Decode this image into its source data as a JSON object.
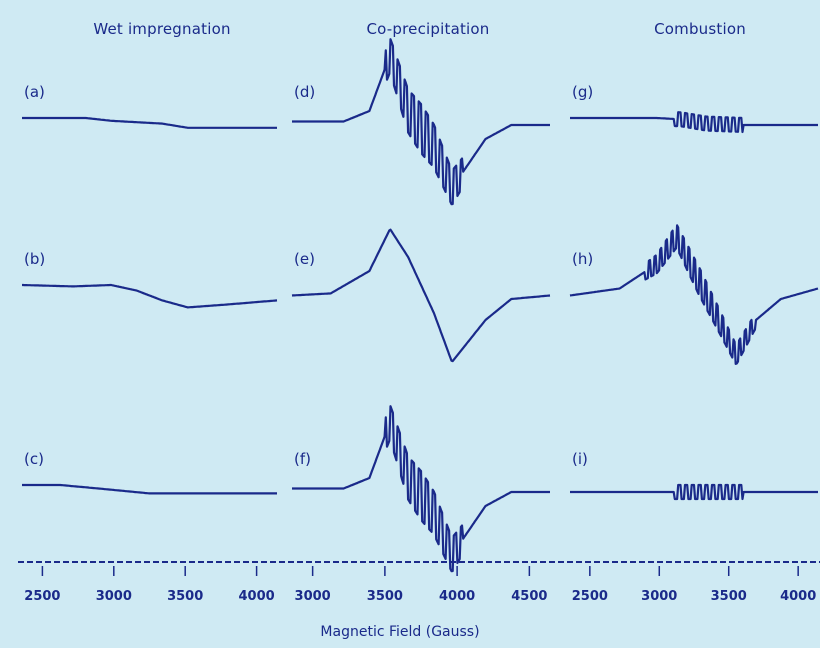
{
  "figure": {
    "column_titles": [
      "Wet impregnation",
      "Co-precipitation",
      "Combustion"
    ],
    "xlabel": "Magnetic Field (Gauss)",
    "colors": {
      "trace": "#1a2a8a",
      "background": "#cfeaf3"
    }
  },
  "chart_data": [
    {
      "type": "line",
      "label": "(a)",
      "column": 0,
      "row": 0,
      "x_ticks": [
        "2500",
        "3000",
        "3500",
        "4000"
      ],
      "series": [
        {
          "shape": "flat-steps",
          "points": [
            [
              0,
              0.1
            ],
            [
              0.25,
              0.1
            ],
            [
              0.35,
              0.06
            ],
            [
              0.45,
              0.04
            ],
            [
              0.55,
              0.02
            ],
            [
              0.65,
              -0.04
            ],
            [
              0.8,
              -0.04
            ],
            [
              1.0,
              -0.04
            ]
          ]
        }
      ]
    },
    {
      "type": "line",
      "label": "(b)",
      "column": 0,
      "row": 1,
      "x_ticks": [
        "2500",
        "3000",
        "3500",
        "4000"
      ],
      "series": [
        {
          "shape": "sigmoid-drop",
          "points": [
            [
              0,
              0.1
            ],
            [
              0.2,
              0.08
            ],
            [
              0.35,
              0.1
            ],
            [
              0.45,
              0.02
            ],
            [
              0.55,
              -0.12
            ],
            [
              0.65,
              -0.22
            ],
            [
              0.8,
              -0.18
            ],
            [
              1.0,
              -0.12
            ]
          ]
        }
      ]
    },
    {
      "type": "line",
      "label": "(c)",
      "column": 0,
      "row": 2,
      "x_ticks": [
        "2500",
        "3000",
        "3500",
        "4000"
      ],
      "series": [
        {
          "shape": "flat-steps",
          "points": [
            [
              0,
              0.1
            ],
            [
              0.15,
              0.1
            ],
            [
              0.3,
              0.05
            ],
            [
              0.5,
              -0.02
            ],
            [
              0.7,
              -0.02
            ],
            [
              1.0,
              -0.02
            ]
          ]
        }
      ]
    },
    {
      "type": "line",
      "label": "(d)",
      "column": 1,
      "row": 0,
      "x_ticks": [
        "3000",
        "3500",
        "4000",
        "4500"
      ],
      "series": [
        {
          "shape": "hyperfine-sextet",
          "points": [
            [
              0,
              0.05
            ],
            [
              0.2,
              0.05
            ],
            [
              0.3,
              0.2
            ],
            [
              0.38,
              1.0
            ],
            [
              0.45,
              0.2
            ],
            [
              0.55,
              -0.3
            ],
            [
              0.62,
              -0.9
            ],
            [
              0.75,
              -0.2
            ],
            [
              0.85,
              0
            ],
            [
              1.0,
              0
            ]
          ]
        }
      ]
    },
    {
      "type": "line",
      "label": "(e)",
      "column": 1,
      "row": 1,
      "x_ticks": [
        "3000",
        "3500",
        "4000",
        "4500"
      ],
      "series": [
        {
          "shape": "broad-derivative",
          "points": [
            [
              0,
              -0.05
            ],
            [
              0.15,
              -0.02
            ],
            [
              0.3,
              0.3
            ],
            [
              0.38,
              0.9
            ],
            [
              0.45,
              0.5
            ],
            [
              0.55,
              -0.3
            ],
            [
              0.62,
              -1.0
            ],
            [
              0.75,
              -0.4
            ],
            [
              0.85,
              -0.1
            ],
            [
              1.0,
              -0.05
            ]
          ]
        }
      ]
    },
    {
      "type": "line",
      "label": "(f)",
      "column": 1,
      "row": 2,
      "x_ticks": [
        "3000",
        "3500",
        "4000",
        "4500"
      ],
      "series": [
        {
          "shape": "hyperfine-sextet",
          "points": [
            [
              0,
              0.05
            ],
            [
              0.2,
              0.05
            ],
            [
              0.3,
              0.2
            ],
            [
              0.38,
              1.0
            ],
            [
              0.45,
              0.2
            ],
            [
              0.55,
              -0.3
            ],
            [
              0.62,
              -0.9
            ],
            [
              0.75,
              -0.2
            ],
            [
              0.85,
              0
            ],
            [
              1.0,
              0
            ]
          ]
        }
      ]
    },
    {
      "type": "line",
      "label": "(g)",
      "column": 2,
      "row": 0,
      "x_ticks": [
        "2500",
        "3000",
        "3500",
        "4000"
      ],
      "series": [
        {
          "shape": "weak-sextet",
          "points": [
            [
              0,
              0.1
            ],
            [
              0.35,
              0.1
            ],
            [
              0.45,
              0.08
            ],
            [
              0.55,
              0.02
            ],
            [
              0.7,
              0
            ],
            [
              1.0,
              0
            ]
          ]
        }
      ]
    },
    {
      "type": "line",
      "label": "(h)",
      "column": 2,
      "row": 1,
      "x_ticks": [
        "2500",
        "3000",
        "3500",
        "4000"
      ],
      "series": [
        {
          "shape": "noisy-derivative",
          "points": [
            [
              0,
              -0.05
            ],
            [
              0.2,
              0.05
            ],
            [
              0.35,
              0.4
            ],
            [
              0.43,
              0.8
            ],
            [
              0.5,
              0.3
            ],
            [
              0.6,
              -0.4
            ],
            [
              0.67,
              -0.9
            ],
            [
              0.75,
              -0.4
            ],
            [
              0.85,
              -0.1
            ],
            [
              1.0,
              0.05
            ]
          ]
        }
      ]
    },
    {
      "type": "line",
      "label": "(i)",
      "column": 2,
      "row": 2,
      "x_ticks": [
        "2500",
        "3000",
        "3500",
        "4000"
      ],
      "series": [
        {
          "shape": "weak-sextet",
          "points": [
            [
              0,
              0
            ],
            [
              0.4,
              0
            ],
            [
              0.5,
              0
            ],
            [
              0.65,
              0
            ],
            [
              1.0,
              0
            ]
          ]
        }
      ]
    }
  ]
}
